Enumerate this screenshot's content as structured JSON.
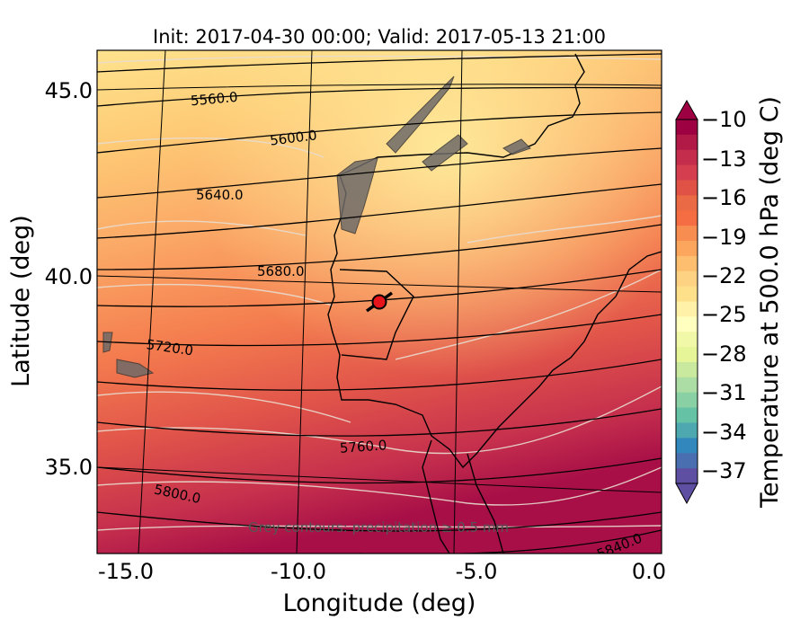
{
  "title": "Init: 2017-04-30 00:00; Valid: 2017-05-13 21:00",
  "xlabel": "Longitude (deg)",
  "ylabel": "Latitude (deg)",
  "xticks": [
    "-15.0",
    "-10.0",
    "-5.0",
    "0.0"
  ],
  "yticks": [
    "45.0",
    "40.0",
    "35.0"
  ],
  "colorbar": {
    "label": "Temperature at 500.0 hPa (deg C)",
    "ticks": [
      "−10",
      "−13",
      "−16",
      "−19",
      "−22",
      "−25",
      "−28",
      "−31",
      "−34",
      "−37"
    ],
    "min": -38,
    "max": -10,
    "extend": "both",
    "colormap": "Spectral"
  },
  "contour_labels": [
    "5560.0",
    "5600.0",
    "5640.0",
    "5680.0",
    "5720.0",
    "5760.0",
    "5800.0",
    "5840.0"
  ],
  "note": "Grey contours: precipitation ≥ 0.5 mm",
  "marker": {
    "color": "#e8141c",
    "lon": -7.7,
    "lat": 39.4
  },
  "colors": {
    "contour_line": "#000000",
    "isotherm_line": "#e8d8c8",
    "precip_fill": "#6e6a68"
  }
}
